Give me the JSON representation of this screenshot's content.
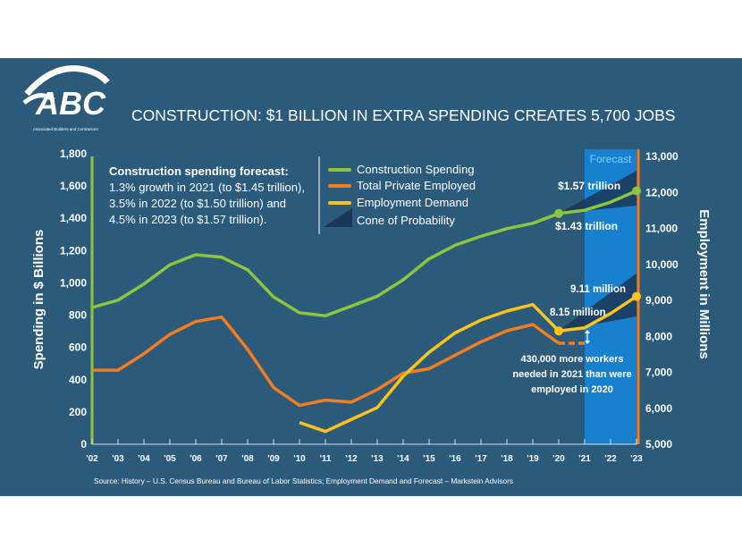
{
  "header": {
    "logo_text": "ABC",
    "logo_subtext": "Associated Builders and Contractors",
    "title": "CONSTRUCTION: $1 BILLION IN EXTRA SPENDING CREATES 5,700 JOBS"
  },
  "colors": {
    "background": "#2c5a7b",
    "page": "#ffffff",
    "construction_spending": "#8cc63f",
    "total_private_employed": "#f37d1f",
    "employment_demand": "#fcc419",
    "cone": "#1b3656",
    "forecast_band": "#1780cf",
    "forecast_label": "#7fd3f7"
  },
  "annotation": {
    "heading": "Construction spending forecast:",
    "lines": [
      "1.3% growth in 2021 (to $1.45 trillion),",
      "3.5% in 2022 (to $1.50 trillion) and",
      "4.5% in 2023 (to $1.57 trillion)."
    ]
  },
  "callouts": {
    "spending_2023": "$1.57 trillion",
    "spending_2020": "$1.43 trillion",
    "demand_2023": "9.11 million",
    "demand_2020": "8.15 million",
    "gap_lines": [
      "430,000 more workers",
      "needed in 2021 than were",
      "employed in 2020"
    ]
  },
  "source": "Source:  History – U.S. Census Bureau and Bureau of Labor Statistics;  Employment Demand and Forecast – Markstein Advisors",
  "chart_data": {
    "type": "line",
    "categories": [
      "'02",
      "'03",
      "'04",
      "'05",
      "'06",
      "'07",
      "'08",
      "'09",
      "'10",
      "'11",
      "'12",
      "'13",
      "'14",
      "'15",
      "'16",
      "'17",
      "'18",
      "'19",
      "'20",
      "'21",
      "'22",
      "'23"
    ],
    "x": [
      2002,
      2003,
      2004,
      2005,
      2006,
      2007,
      2008,
      2009,
      2010,
      2011,
      2012,
      2013,
      2014,
      2015,
      2016,
      2017,
      2018,
      2019,
      2020,
      2021,
      2022,
      2023
    ],
    "ylabel": "Spending in $ Billions",
    "ylim": [
      0,
      1800
    ],
    "yticks": [
      "0",
      "200",
      "400",
      "600",
      "800",
      "1,000",
      "1,200",
      "1,400",
      "1,600",
      "1,800"
    ],
    "y2label": "Employment in Millions",
    "y2lim": [
      5000,
      13000
    ],
    "y2ticks": [
      "5,000",
      "6,000",
      "7,000",
      "8,000",
      "9,000",
      "10,000",
      "11,000",
      "12,000",
      "13,000"
    ],
    "forecast_label": "Forecast",
    "forecast_range": [
      2021,
      2023
    ],
    "grid": false,
    "legend_position": "top-center",
    "series": [
      {
        "name": "Construction Spending",
        "axis": "left",
        "values": [
          848,
          893,
          993,
          1112,
          1174,
          1159,
          1081,
          913,
          815,
          796,
          856,
          917,
          1019,
          1149,
          1233,
          1289,
          1336,
          1369,
          1430,
          1450,
          1500,
          1570
        ]
      },
      {
        "name": "Total Private Employed",
        "axis": "right",
        "values": [
          7059,
          7060,
          7515,
          8055,
          8411,
          8536,
          7640,
          6577,
          6079,
          6228,
          6170,
          6519,
          6975,
          7100,
          7473,
          7846,
          8155,
          8329,
          7806,
          null,
          null,
          null
        ],
        "dashed_extension": {
          "from": 2020,
          "to": 2021,
          "value": 7806
        }
      },
      {
        "name": "Employment Demand",
        "axis": "right",
        "values": [
          null,
          null,
          null,
          null,
          null,
          null,
          null,
          null,
          5605,
          5356,
          5690,
          6020,
          6892,
          7557,
          8095,
          8453,
          8702,
          8884,
          8150,
          8237,
          8635,
          9110
        ]
      },
      {
        "name": "Cone of Probability",
        "type": "area",
        "cones": [
          {
            "axis": "left",
            "from": 2020,
            "from_value": 1430,
            "to": 2023,
            "upper": 1695,
            "lower": 1479
          },
          {
            "axis": "right",
            "from": 2020,
            "from_value": 8150,
            "to": 2023,
            "upper": 9756,
            "lower": 8553
          }
        ]
      }
    ]
  }
}
